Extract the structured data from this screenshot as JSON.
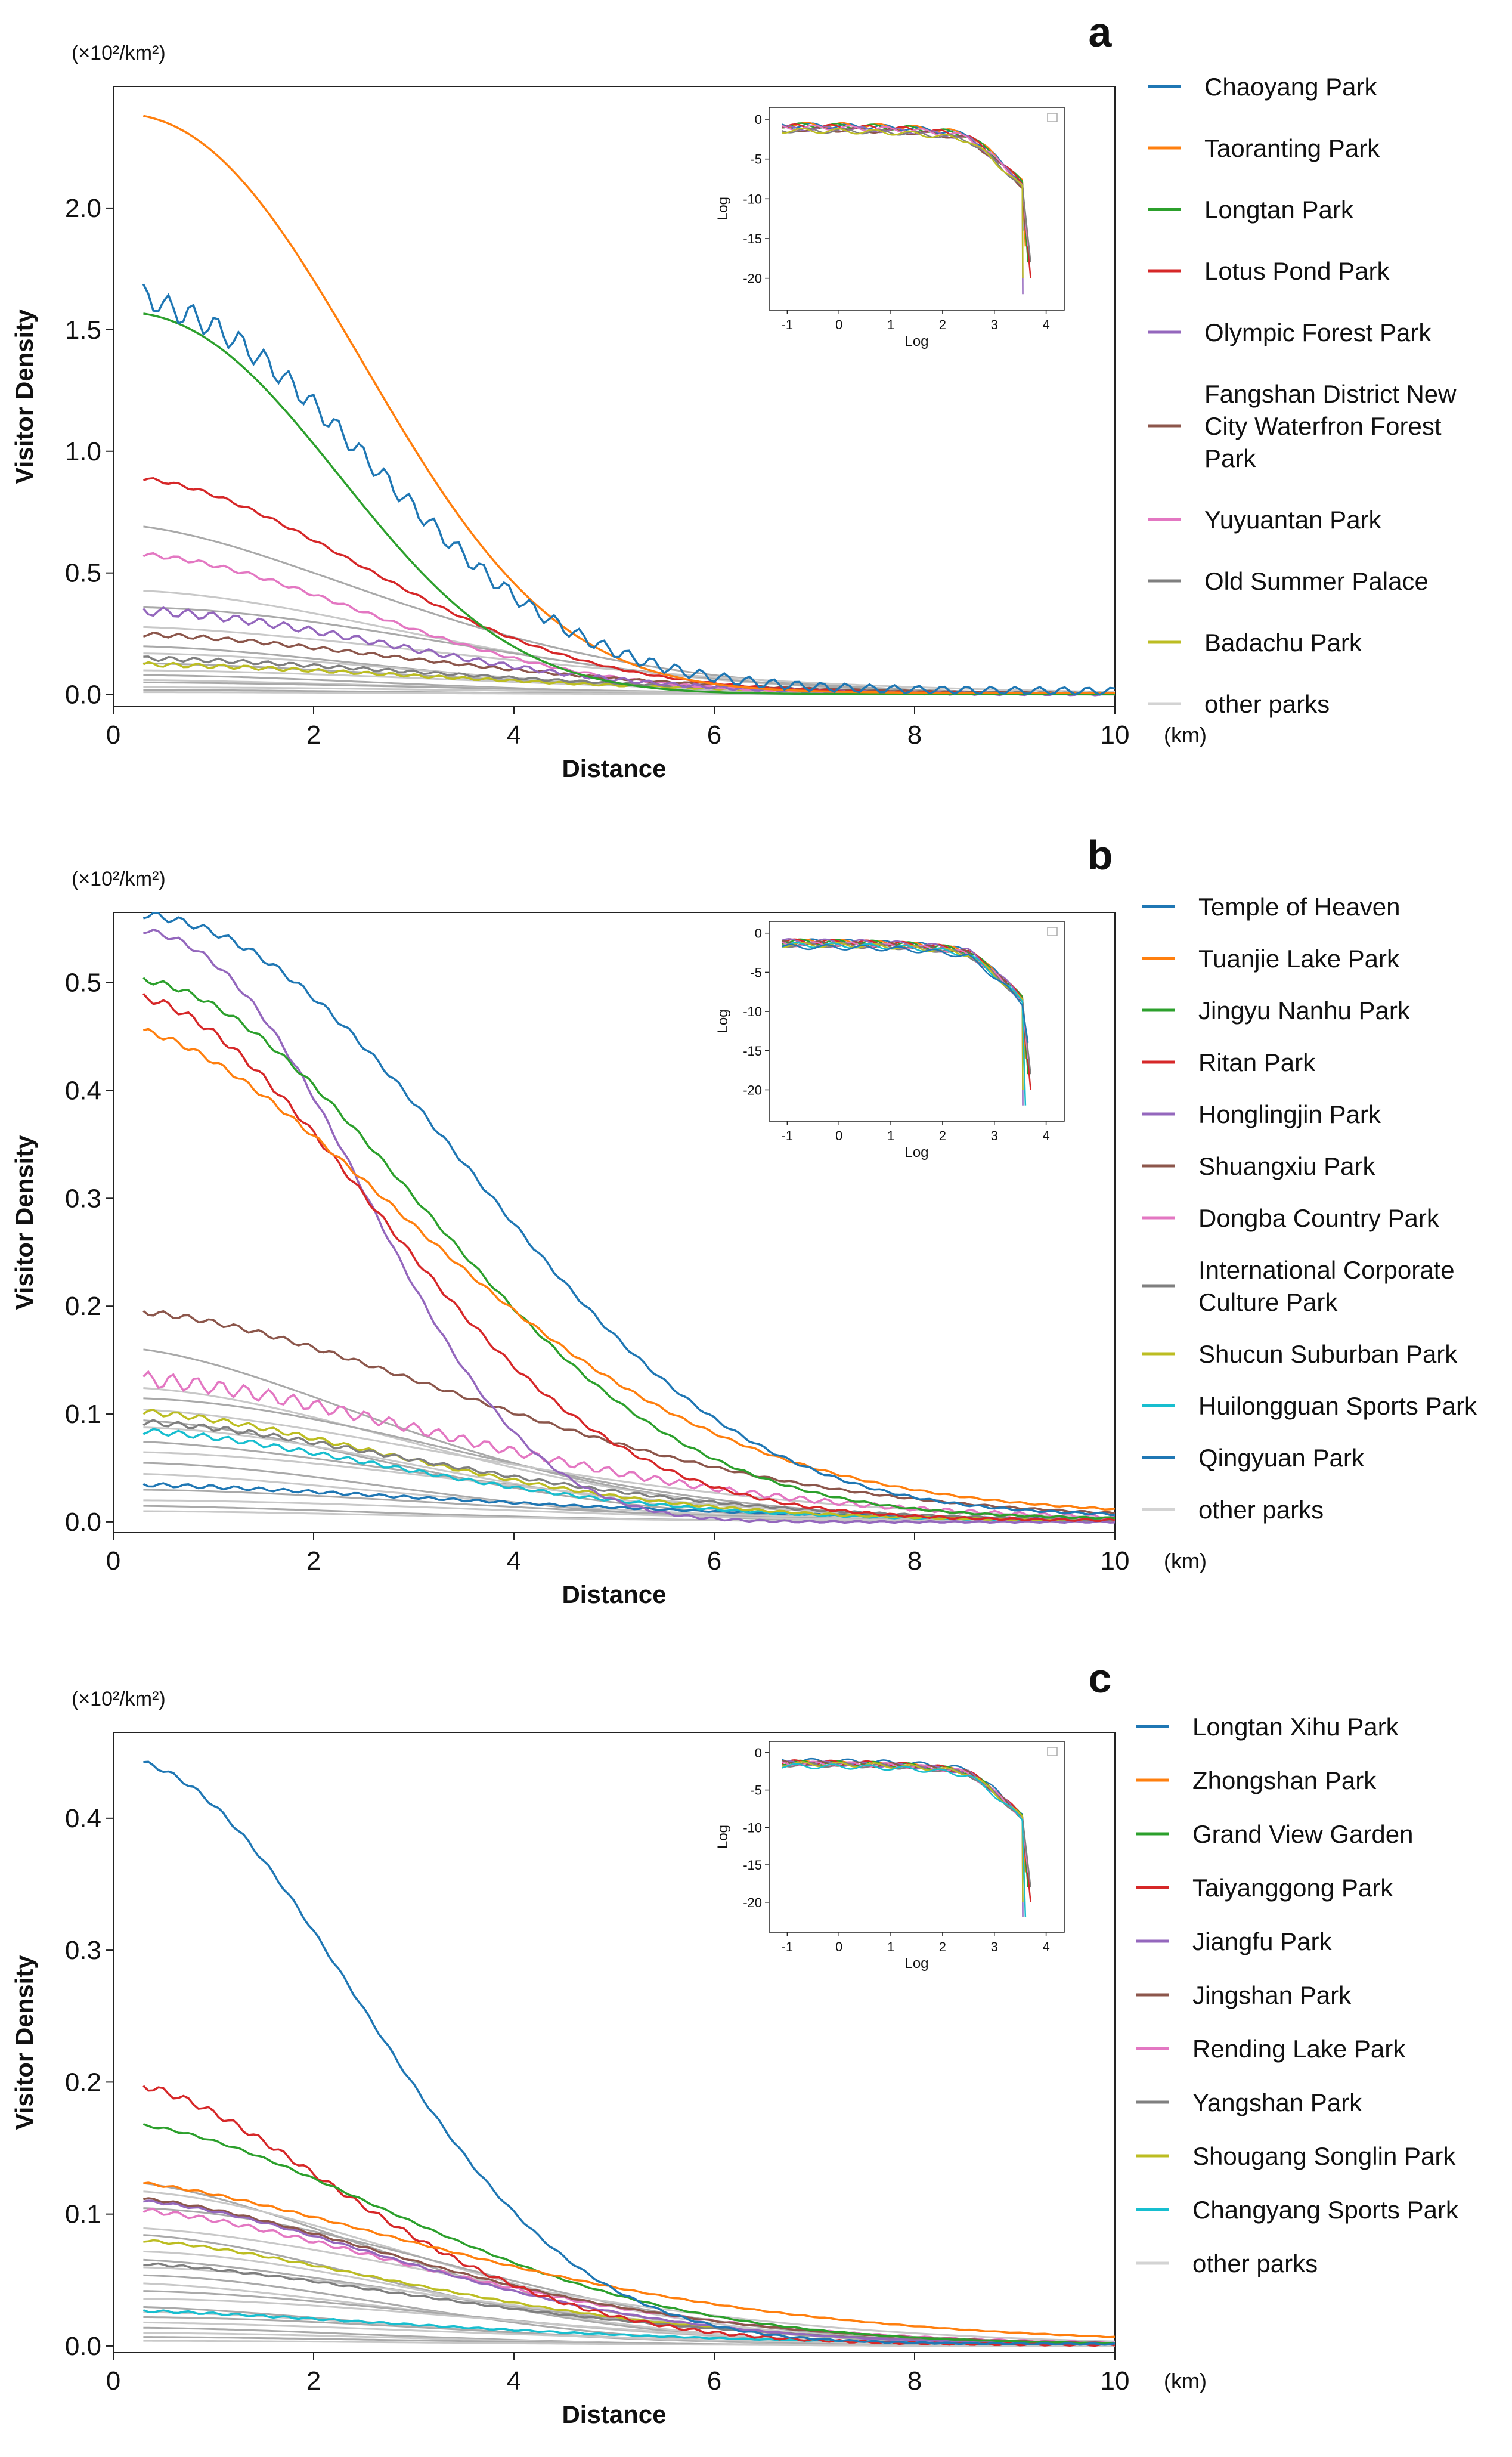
{
  "chart_data": [
    {
      "panel": "a",
      "type": "line",
      "unit_label": "(×10²/km²)",
      "xlabel": "Distance",
      "x_unit": "(km)",
      "ylabel": "Visitor Density",
      "xlim": [
        0,
        10
      ],
      "ylim": [
        -0.05,
        2.5
      ],
      "xticks": [
        "0",
        "2",
        "4",
        "6",
        "8",
        "10"
      ],
      "yticks": [
        {
          "v": 0.0,
          "label": "0.0"
        },
        {
          "v": 0.5,
          "label": "0.5"
        },
        {
          "v": 1.0,
          "label": "1.0"
        },
        {
          "v": 1.5,
          "label": "1.5"
        },
        {
          "v": 2.0,
          "label": "2.0"
        }
      ],
      "inset": {
        "xlabel": "Log",
        "ylabel": "Log",
        "xticks": [
          "-1",
          "0",
          "1",
          "2",
          "3",
          "4"
        ],
        "yticks": [
          "0",
          "-5",
          "-10",
          "-15",
          "-20"
        ],
        "ymin": -24
      },
      "other_parks_label": "other parks",
      "series": [
        {
          "name": "Chaoyang Park",
          "color": "#1f77b4",
          "y0": 1.57,
          "s": 3.4,
          "p": 2.2,
          "tail": 0.05,
          "noise": 0.06,
          "peak": true
        },
        {
          "name": "Taoranting Park",
          "color": "#ff7f0e",
          "y0": 2.37,
          "s": 3.2,
          "p": 2.3,
          "tail": 0.02,
          "noise": 0.0
        },
        {
          "name": "Longtan Park",
          "color": "#2ca02c",
          "y0": 1.57,
          "s": 2.9,
          "p": 2.3,
          "tail": 0.005,
          "noise": 0.0
        },
        {
          "name": "Lotus Pond Park",
          "color": "#d62728",
          "y0": 0.88,
          "s": 3.4,
          "p": 2.0,
          "tail": 0.015,
          "noise": 0.008
        },
        {
          "name": "Olympic Forest Park",
          "color": "#9467bd",
          "y0": 0.34,
          "s": 3.8,
          "p": 2.0,
          "tail": 0.005,
          "noise": 0.02
        },
        {
          "name": "Fangshan District New City Waterfron Forest Park",
          "color": "#8c564b",
          "y0": 0.24,
          "s": 4.2,
          "p": 1.8,
          "tail": 0.01,
          "noise": 0.01
        },
        {
          "name": "Yuyuantan Park",
          "color": "#e377c2",
          "y0": 0.57,
          "s": 3.4,
          "p": 2.0,
          "tail": 0.01,
          "noise": 0.01
        },
        {
          "name": "Old Summer Palace",
          "color": "#7f7f7f",
          "y0": 0.14,
          "s": 4.5,
          "p": 1.8,
          "tail": 0.01,
          "noise": 0.01
        },
        {
          "name": "Badachu Park",
          "color": "#bcbd22",
          "y0": 0.12,
          "s": 4.5,
          "p": 1.8,
          "tail": 0.005,
          "noise": 0.01
        }
      ],
      "other_y0": [
        0.7,
        0.43,
        0.36,
        0.28,
        0.2,
        0.17,
        0.13,
        0.1,
        0.08,
        0.06,
        0.05,
        0.03,
        0.02,
        0.01
      ]
    },
    {
      "panel": "b",
      "type": "line",
      "unit_label": "(×10²/km²)",
      "xlabel": "Distance",
      "x_unit": "(km)",
      "ylabel": "Visitor Density",
      "xlim": [
        0,
        10
      ],
      "ylim": [
        -0.01,
        0.565
      ],
      "xticks": [
        "0",
        "2",
        "4",
        "6",
        "8",
        "10"
      ],
      "yticks": [
        {
          "v": 0.0,
          "label": "0.0"
        },
        {
          "v": 0.1,
          "label": "0.1"
        },
        {
          "v": 0.2,
          "label": "0.2"
        },
        {
          "v": 0.3,
          "label": "0.3"
        },
        {
          "v": 0.4,
          "label": "0.4"
        },
        {
          "v": 0.5,
          "label": "0.5"
        }
      ],
      "inset": {
        "xlabel": "Log",
        "ylabel": "Log",
        "xticks": [
          "-1",
          "0",
          "1",
          "2",
          "3",
          "4"
        ],
        "yticks": [
          "0",
          "-5",
          "-10",
          "-15",
          "-20"
        ],
        "ymin": -24
      },
      "other_parks_label": "other parks",
      "series": [
        {
          "name": "Temple of Heaven",
          "color": "#1f77b4",
          "y0": 0.545,
          "s": 4.6,
          "p": 2.3,
          "tail": 0.02,
          "noise": 0.004
        },
        {
          "name": "Tuanjie Lake Park",
          "color": "#ff7f0e",
          "y0": 0.435,
          "s": 4.3,
          "p": 1.8,
          "tail": 0.025,
          "noise": 0.003
        },
        {
          "name": "Jingyu Nanhu Park",
          "color": "#2ca02c",
          "y0": 0.495,
          "s": 4.1,
          "p": 2.1,
          "tail": 0.01,
          "noise": 0.003
        },
        {
          "name": "Ritan Park",
          "color": "#d62728",
          "y0": 0.485,
          "s": 3.6,
          "p": 2.0,
          "tail": 0.005,
          "noise": 0.004
        },
        {
          "name": "Honglingjin Park",
          "color": "#9467bd",
          "y0": 0.55,
          "s": 3.1,
          "p": 2.5,
          "tail": 0.0,
          "noise": 0.003
        },
        {
          "name": "Shuangxiu Park",
          "color": "#8c564b",
          "y0": 0.188,
          "s": 5.0,
          "p": 1.8,
          "tail": 0.008,
          "noise": 0.003
        },
        {
          "name": "Dongba Country Park",
          "color": "#e377c2",
          "y0": 0.128,
          "s": 4.8,
          "p": 1.8,
          "tail": 0.005,
          "noise": 0.008
        },
        {
          "name": "International Corporate Culture Park",
          "color": "#7f7f7f",
          "y0": 0.09,
          "s": 4.5,
          "p": 1.8,
          "tail": 0.003,
          "noise": 0.003
        },
        {
          "name": "Shucun Suburban Park",
          "color": "#bcbd22",
          "y0": 0.1,
          "s": 4.0,
          "p": 1.8,
          "tail": 0.003,
          "noise": 0.003
        },
        {
          "name": "Huilongguan Sports Park",
          "color": "#17becf",
          "y0": 0.082,
          "s": 4.0,
          "p": 1.8,
          "tail": 0.003,
          "noise": 0.003
        },
        {
          "name": "Qingyuan Park",
          "color": "#1f77b4",
          "y0": 0.032,
          "s": 5.0,
          "p": 1.6,
          "tail": 0.003,
          "noise": 0.002
        }
      ],
      "other_y0": [
        0.162,
        0.125,
        0.115,
        0.105,
        0.095,
        0.088,
        0.075,
        0.065,
        0.055,
        0.045,
        0.03,
        0.02,
        0.015,
        0.01
      ]
    },
    {
      "panel": "c",
      "type": "line",
      "unit_label": "(×10²/km²)",
      "xlabel": "Distance",
      "x_unit": "(km)",
      "ylabel": "Visitor Density",
      "xlim": [
        0,
        10
      ],
      "ylim": [
        -0.005,
        0.465
      ],
      "xticks": [
        "0",
        "2",
        "4",
        "6",
        "8",
        "10"
      ],
      "yticks": [
        {
          "v": 0.0,
          "label": "0.0"
        },
        {
          "v": 0.1,
          "label": "0.1"
        },
        {
          "v": 0.2,
          "label": "0.2"
        },
        {
          "v": 0.3,
          "label": "0.3"
        },
        {
          "v": 0.4,
          "label": "0.4"
        }
      ],
      "inset": {
        "xlabel": "Log",
        "ylabel": "Log",
        "xticks": [
          "-1",
          "0",
          "1",
          "2",
          "3",
          "4"
        ],
        "yticks": [
          "0",
          "-5",
          "-10",
          "-15",
          "-20"
        ],
        "ymin": -24
      },
      "other_parks_label": "other parks",
      "series": [
        {
          "name": "Longtan Xihu Park",
          "color": "#1f77b4",
          "y0": 0.44,
          "s": 3.3,
          "p": 2.1,
          "tail": 0.005,
          "noise": 0.002
        },
        {
          "name": "Zhongshan Park",
          "color": "#ff7f0e",
          "y0": 0.117,
          "s": 4.8,
          "p": 1.6,
          "tail": 0.008,
          "noise": 0.001
        },
        {
          "name": "Grand View Garden",
          "color": "#2ca02c",
          "y0": 0.165,
          "s": 4.0,
          "p": 1.8,
          "tail": 0.004,
          "noise": 0.001
        },
        {
          "name": "Taiyanggong Park",
          "color": "#d62728",
          "y0": 0.197,
          "s": 3.2,
          "p": 1.8,
          "tail": 0.003,
          "noise": 0.003
        },
        {
          "name": "Jiangfu Park",
          "color": "#9467bd",
          "y0": 0.108,
          "s": 4.0,
          "p": 1.8,
          "tail": 0.003,
          "noise": 0.001
        },
        {
          "name": "Jingshan Park",
          "color": "#8c564b",
          "y0": 0.11,
          "s": 4.2,
          "p": 1.7,
          "tail": 0.003,
          "noise": 0.001
        },
        {
          "name": "Rending Lake Park",
          "color": "#e377c2",
          "y0": 0.1,
          "s": 4.3,
          "p": 1.7,
          "tail": 0.004,
          "noise": 0.002
        },
        {
          "name": "Yangshan Park",
          "color": "#7f7f7f",
          "y0": 0.06,
          "s": 4.5,
          "p": 1.7,
          "tail": 0.003,
          "noise": 0.001
        },
        {
          "name": "Shougang Songlin Park",
          "color": "#bcbd22",
          "y0": 0.078,
          "s": 4.2,
          "p": 1.7,
          "tail": 0.003,
          "noise": 0.001
        },
        {
          "name": "Changyang Sports Park",
          "color": "#17becf",
          "y0": 0.025,
          "s": 4.5,
          "p": 1.6,
          "tail": 0.002,
          "noise": 0.001
        }
      ],
      "other_y0": [
        0.125,
        0.118,
        0.105,
        0.09,
        0.085,
        0.072,
        0.066,
        0.06,
        0.054,
        0.048,
        0.042,
        0.036,
        0.03,
        0.026,
        0.022,
        0.018,
        0.014,
        0.01,
        0.007,
        0.004
      ]
    }
  ]
}
